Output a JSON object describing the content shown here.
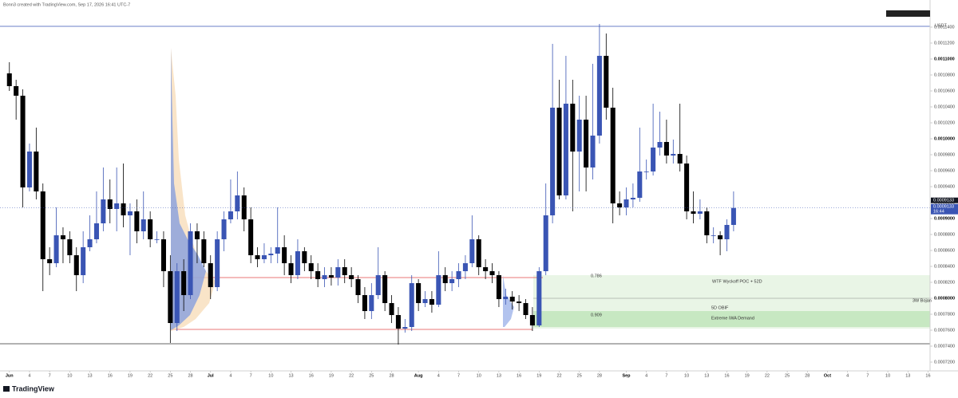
{
  "chart_data": {
    "type": "candlestick",
    "header": "Bonn3 created with TradingView.com, Sep 17, 2026 16:41 UTC-7",
    "currency": "USDT",
    "brand": "TradingView",
    "up_color": "#3a55b4",
    "down_color": "#000000",
    "open": [
      0.001082,
      0.001066,
      0.001054,
      0.000939,
      0.000984,
      0.000934,
      0.000849,
      0.000844,
      0.000879,
      0.000874,
      0.000854,
      0.000829,
      0.000864,
      0.000874,
      0.000894,
      0.000924,
      0.000912,
      0.000919,
      0.000904,
      0.000909,
      0.000884,
      0.000899,
      0.000874,
      0.000874,
      0.000834,
      0.000769,
      0.000834,
      0.000804,
      0.000884,
      0.000874,
      0.000844,
      0.000814,
      0.000874,
      0.000899,
      0.000909,
      0.000929,
      0.000899,
      0.000854,
      0.000849,
      0.000854,
      0.000856,
      0.000864,
      0.000844,
      0.000829,
      0.000859,
      0.000844,
      0.000834,
      0.000824,
      0.000829,
      0.000826,
      0.000839,
      0.000829,
      0.000824,
      0.000804,
      0.000784,
      0.000804,
      0.000829,
      0.000794,
      0.000779,
      0.000762,
      0.000764,
      0.000819,
      0.000794,
      0.000799,
      0.000792,
      0.000829,
      0.000819,
      0.000824,
      0.000834,
      0.000844,
      0.000874,
      0.000839,
      0.000834,
      0.000829,
      0.000799,
      0.000802,
      0.000796,
      0.000794,
      0.000779,
      0.000766,
      0.000834,
      0.000904,
      0.001039,
      0.000929,
      0.001044,
      0.000984,
      0.001024,
      0.000964,
      0.001004,
      0.001104,
      0.001039,
      0.000919,
      0.000914,
      0.000924,
      0.000926,
      0.000959,
      0.000959,
      0.000989,
      0.000996,
      0.000979,
      0.000981,
      0.000969,
      0.000909,
      0.000906,
      0.000909,
      0.000879,
      0.000879,
      0.000874,
      0.000892
    ],
    "high": [
      0.001096,
      0.001074,
      0.001062,
      0.000994,
      0.001014,
      0.000944,
      0.000864,
      0.000914,
      0.000889,
      0.000884,
      0.000864,
      0.000884,
      0.000904,
      0.000934,
      0.000964,
      0.000949,
      0.000964,
      0.000969,
      0.000919,
      0.000924,
      0.000934,
      0.000909,
      0.000884,
      0.000884,
      0.000854,
      0.000844,
      0.000849,
      0.000894,
      0.000894,
      0.000884,
      0.000854,
      0.000884,
      0.000909,
      0.000949,
      0.000959,
      0.000939,
      0.000914,
      0.000864,
      0.000869,
      0.000864,
      0.000914,
      0.000879,
      0.000854,
      0.000874,
      0.000864,
      0.000854,
      0.000844,
      0.000839,
      0.000839,
      0.000849,
      0.000849,
      0.000839,
      0.000829,
      0.000814,
      0.000819,
      0.000864,
      0.000834,
      0.000804,
      0.000789,
      0.000774,
      0.000829,
      0.000824,
      0.000809,
      0.000809,
      0.000859,
      0.000839,
      0.000834,
      0.000844,
      0.000854,
      0.000904,
      0.000879,
      0.000849,
      0.000844,
      0.000834,
      0.000812,
      0.000809,
      0.000804,
      0.000799,
      0.000789,
      0.000839,
      0.000944,
      0.001119,
      0.001074,
      0.001104,
      0.001074,
      0.001054,
      0.001054,
      0.001094,
      0.001144,
      0.001132,
      0.001064,
      0.000934,
      0.000939,
      0.000944,
      0.001014,
      0.000974,
      0.001044,
      0.001034,
      0.001024,
      0.000999,
      0.001044,
      0.000979,
      0.000934,
      0.000924,
      0.000914,
      0.000889,
      0.000884,
      0.000899,
      0.000934
    ],
    "low": [
      0.00106,
      0.001024,
      0.000914,
      0.000934,
      0.000924,
      0.000809,
      0.000829,
      0.000839,
      0.000844,
      0.000844,
      0.000809,
      0.000819,
      0.000859,
      0.000869,
      0.000884,
      0.000894,
      0.000884,
      0.000889,
      0.000854,
      0.000869,
      0.000874,
      0.000864,
      0.000869,
      0.000814,
      0.000744,
      0.000759,
      0.000784,
      0.000799,
      0.000844,
      0.000839,
      0.000799,
      0.000809,
      0.000859,
      0.000894,
      0.000899,
      0.000884,
      0.000844,
      0.000839,
      0.000844,
      0.000844,
      0.000844,
      0.000829,
      0.000819,
      0.000824,
      0.000834,
      0.000824,
      0.000814,
      0.000814,
      0.000816,
      0.000816,
      0.000819,
      0.000814,
      0.000794,
      0.000774,
      0.000774,
      0.000799,
      0.000784,
      0.000769,
      0.000742,
      0.000757,
      0.000759,
      0.000784,
      0.000789,
      0.000782,
      0.000789,
      0.000809,
      0.000809,
      0.000814,
      0.000824,
      0.000839,
      0.000829,
      0.000824,
      0.000819,
      0.000789,
      0.000792,
      0.000786,
      0.000784,
      0.000774,
      0.000759,
      0.000764,
      0.000829,
      0.000894,
      0.000924,
      0.000924,
      0.000909,
      0.000934,
      0.000934,
      0.000949,
      0.000994,
      0.001024,
      0.000894,
      0.000904,
      0.000904,
      0.000914,
      0.000921,
      0.000949,
      0.000954,
      0.000979,
      0.000969,
      0.000969,
      0.000959,
      0.000899,
      0.000894,
      0.000899,
      0.000869,
      0.000869,
      0.000854,
      0.000859,
      0.000884
    ],
    "close": [
      0.001066,
      0.001054,
      0.000939,
      0.000984,
      0.000934,
      0.000849,
      0.000844,
      0.000879,
      0.000874,
      0.000854,
      0.000829,
      0.000864,
      0.000874,
      0.000894,
      0.000924,
      0.000912,
      0.000919,
      0.000904,
      0.000909,
      0.000884,
      0.000899,
      0.000874,
      0.000874,
      0.000834,
      0.000769,
      0.000834,
      0.000804,
      0.000884,
      0.000874,
      0.000844,
      0.000814,
      0.000874,
      0.000899,
      0.000909,
      0.000929,
      0.000899,
      0.000854,
      0.000849,
      0.000854,
      0.000856,
      0.000864,
      0.000844,
      0.000829,
      0.000859,
      0.000844,
      0.000834,
      0.000824,
      0.000829,
      0.000826,
      0.000839,
      0.000829,
      0.000824,
      0.000804,
      0.000784,
      0.000804,
      0.000829,
      0.000794,
      0.000779,
      0.000762,
      0.000764,
      0.000819,
      0.000794,
      0.000799,
      0.000792,
      0.000829,
      0.000819,
      0.000824,
      0.000834,
      0.000844,
      0.000874,
      0.000839,
      0.000834,
      0.000829,
      0.000799,
      0.000802,
      0.000796,
      0.000794,
      0.000779,
      0.000766,
      0.000834,
      0.000904,
      0.001039,
      0.000929,
      0.001044,
      0.000984,
      0.001024,
      0.000964,
      0.001004,
      0.001104,
      0.001039,
      0.000919,
      0.000914,
      0.000924,
      0.000926,
      0.000959,
      0.000959,
      0.000989,
      0.000996,
      0.000979,
      0.000981,
      0.000969,
      0.000909,
      0.000906,
      0.000909,
      0.000879,
      0.000879,
      0.000874,
      0.000892,
      0.0009133
    ],
    "last_price": {
      "value": 0.0009133,
      "label": "0.0009133"
    },
    "countdown": "16:44",
    "ylim": [
      0.000709,
      0.001166
    ],
    "yticks": [
      {
        "value": 0.00072,
        "label": "0.0007200"
      },
      {
        "value": 0.00074,
        "label": "0.0007400"
      },
      {
        "value": 0.00076,
        "label": "0.0007600"
      },
      {
        "value": 0.00078,
        "label": "0.0007800"
      },
      {
        "value": 0.0008,
        "label": "0.0008000"
      },
      {
        "value": 0.00082,
        "label": "0.0008200"
      },
      {
        "value": 0.00084,
        "label": "0.0008400"
      },
      {
        "value": 0.00086,
        "label": "0.0008600"
      },
      {
        "value": 0.00088,
        "label": "0.0008800"
      },
      {
        "value": 0.0009,
        "label": "0.0009000"
      },
      {
        "value": 0.00092,
        "label": "0.0009200"
      },
      {
        "value": 0.00094,
        "label": "0.0009400"
      },
      {
        "value": 0.00096,
        "label": "0.0009600"
      },
      {
        "value": 0.00098,
        "label": "0.0009800"
      },
      {
        "value": 0.001,
        "label": "0.0010000"
      },
      {
        "value": 0.00102,
        "label": "0.0010200"
      },
      {
        "value": 0.00104,
        "label": "0.0010400"
      },
      {
        "value": 0.00106,
        "label": "0.0010600"
      },
      {
        "value": 0.00108,
        "label": "0.0010800"
      },
      {
        "value": 0.0011,
        "label": "0.0011000"
      },
      {
        "value": 0.00112,
        "label": "0.0011200"
      },
      {
        "value": 0.00114,
        "label": "0.0011400"
      }
    ],
    "xlim": [
      -1.4,
      137.3
    ],
    "xticks": [
      {
        "value": 0,
        "label": "Jun"
      },
      {
        "value": 3,
        "label": "4"
      },
      {
        "value": 6,
        "label": "7"
      },
      {
        "value": 9,
        "label": "10"
      },
      {
        "value": 12,
        "label": "13"
      },
      {
        "value": 15,
        "label": "16"
      },
      {
        "value": 18,
        "label": "19"
      },
      {
        "value": 21,
        "label": "22"
      },
      {
        "value": 24,
        "label": "25"
      },
      {
        "value": 27,
        "label": "28"
      },
      {
        "value": 30,
        "label": "Jul"
      },
      {
        "value": 33,
        "label": "4"
      },
      {
        "value": 36,
        "label": "7"
      },
      {
        "value": 39,
        "label": "10"
      },
      {
        "value": 42,
        "label": "13"
      },
      {
        "value": 45,
        "label": "16"
      },
      {
        "value": 48,
        "label": "19"
      },
      {
        "value": 51,
        "label": "22"
      },
      {
        "value": 54,
        "label": "25"
      },
      {
        "value": 57,
        "label": "28"
      },
      {
        "value": 61,
        "label": "Aug"
      },
      {
        "value": 64,
        "label": "4"
      },
      {
        "value": 67,
        "label": "7"
      },
      {
        "value": 70,
        "label": "10"
      },
      {
        "value": 73,
        "label": "13"
      },
      {
        "value": 76,
        "label": "16"
      },
      {
        "value": 79,
        "label": "19"
      },
      {
        "value": 82,
        "label": "22"
      },
      {
        "value": 85,
        "label": "25"
      },
      {
        "value": 88,
        "label": "28"
      },
      {
        "value": 92,
        "label": "Sep"
      },
      {
        "value": 95,
        "label": "4"
      },
      {
        "value": 98,
        "label": "7"
      },
      {
        "value": 101,
        "label": "10"
      },
      {
        "value": 104,
        "label": "13"
      },
      {
        "value": 107,
        "label": "16"
      },
      {
        "value": 110,
        "label": "19"
      },
      {
        "value": 113,
        "label": "22"
      },
      {
        "value": 116,
        "label": "25"
      },
      {
        "value": 119,
        "label": "28"
      },
      {
        "value": 122,
        "label": "Oct"
      },
      {
        "value": 125,
        "label": "4"
      },
      {
        "value": 128,
        "label": "7"
      },
      {
        "value": 131,
        "label": "10"
      },
      {
        "value": 134,
        "label": "13"
      },
      {
        "value": 137,
        "label": "16"
      }
    ],
    "annotations": [
      "0.786",
      "WTF Wyckoff POC + 52D",
      "3W Bojan",
      "5D OBIF",
      "0.909",
      "Extreme iWA Demand"
    ]
  }
}
